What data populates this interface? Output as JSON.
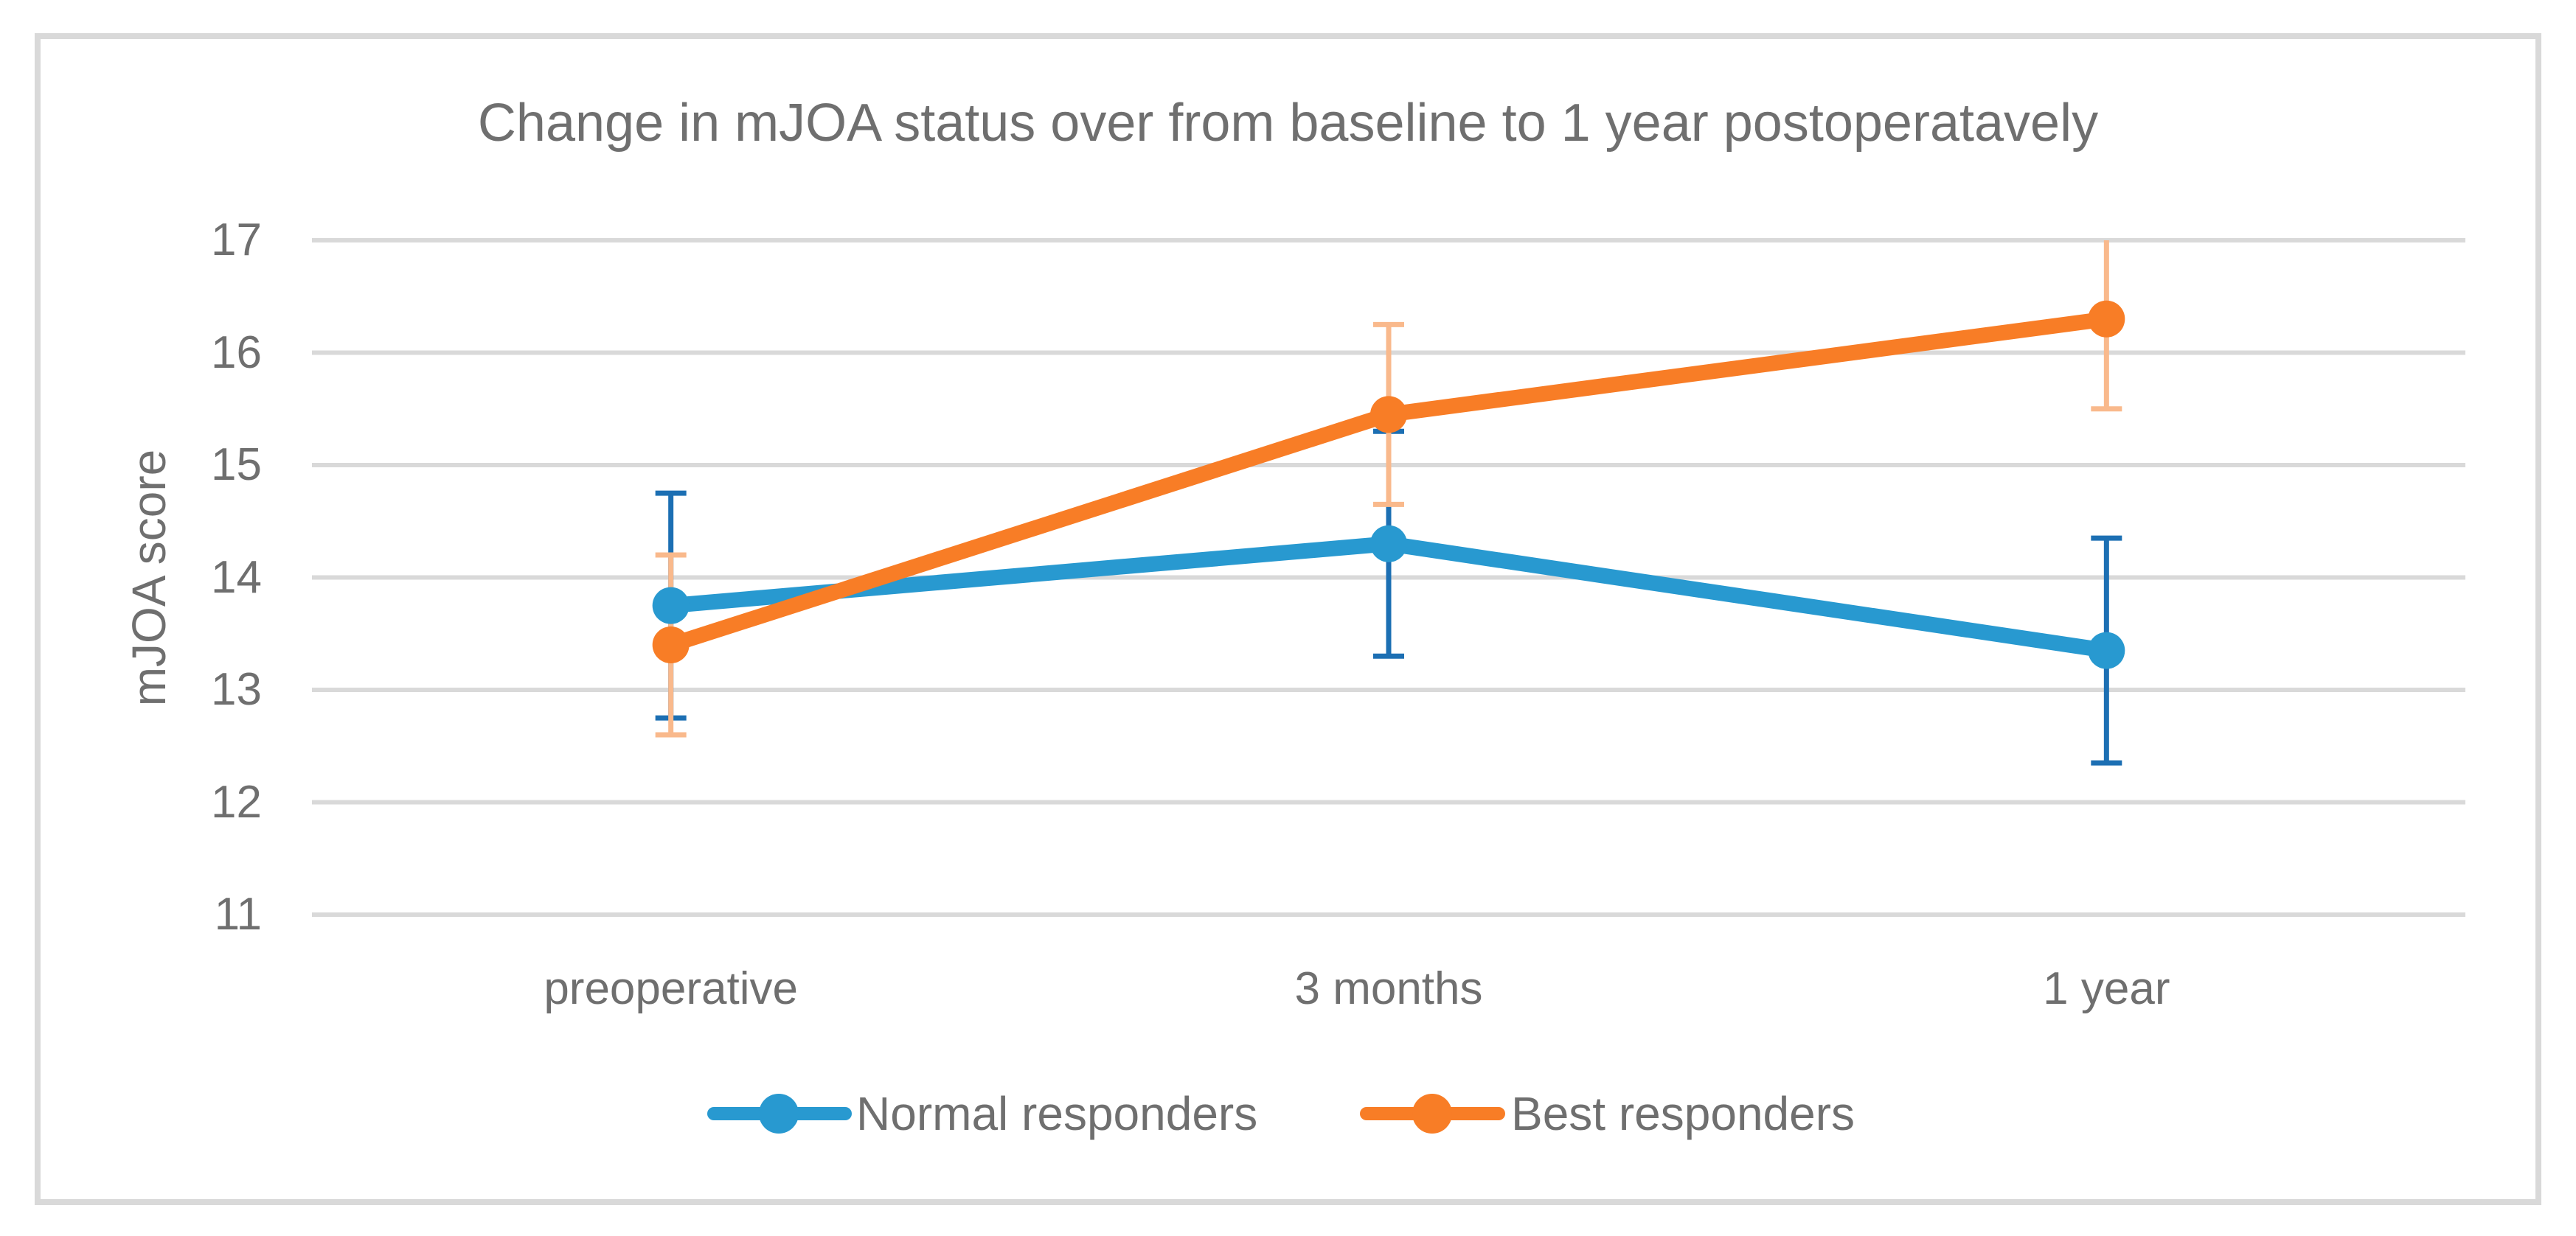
{
  "title": "Change in mJOA status over from baseline to 1 year postoperatavely",
  "chart_data": {
    "type": "line",
    "title": "Change in mJOA status over from baseline to 1 year postoperatavely",
    "xlabel": "",
    "ylabel": "mJOA score",
    "categories": [
      "preoperative",
      "3 months",
      "1 year"
    ],
    "yticks": [
      17,
      16,
      15,
      14,
      13,
      12,
      11
    ],
    "ylim": [
      11,
      17
    ],
    "grid": true,
    "legend_position": "bottom-center",
    "series": [
      {
        "name": "Normal responders",
        "color": "#2899D0",
        "error_color": "#1C6FB3",
        "values": [
          13.75,
          14.3,
          13.35
        ],
        "error_plus": [
          1.0,
          1.0,
          1.0
        ],
        "error_minus": [
          1.0,
          1.0,
          1.0
        ]
      },
      {
        "name": "Best responders",
        "color": "#F87D26",
        "error_color": "#F9B98C",
        "values": [
          13.4,
          15.45,
          16.3
        ],
        "error_plus": [
          0.8,
          0.8,
          0.8
        ],
        "error_minus": [
          0.8,
          0.8,
          0.8
        ]
      }
    ],
    "colors": {
      "gridline": "#D9D9D9",
      "frame_border": "#D9D9D9",
      "text": "#6f6f6f"
    }
  }
}
